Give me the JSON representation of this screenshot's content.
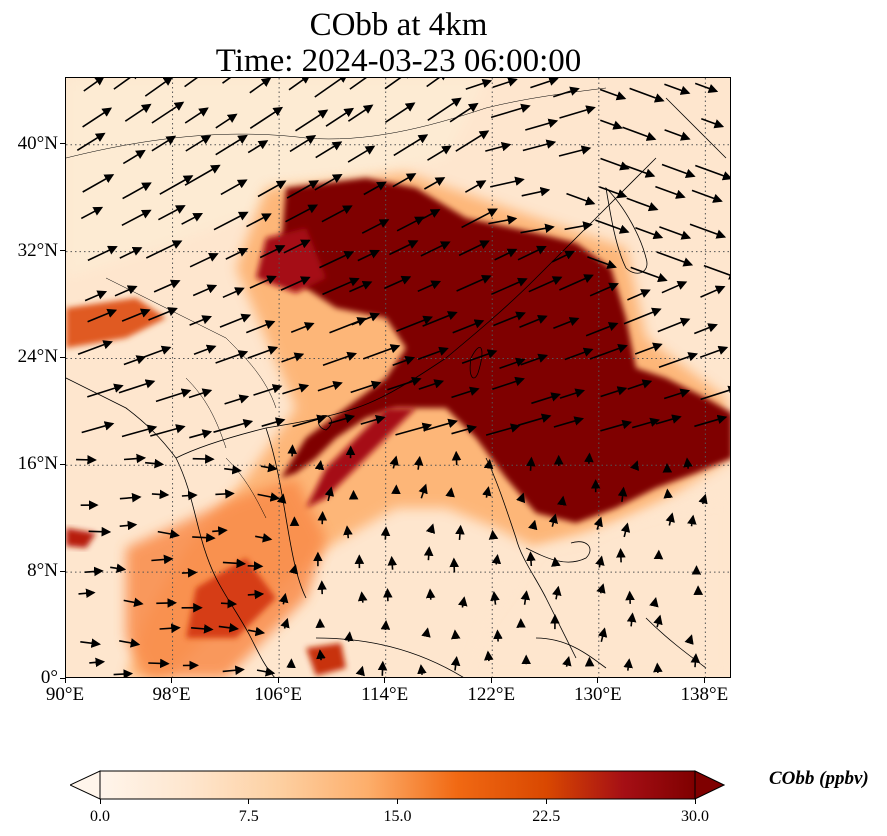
{
  "title": {
    "line1": "CObb at 4km",
    "line2": "Time: 2024-03-23 06:00:00"
  },
  "map": {
    "type": "filled-contour map with wind vectors",
    "extent": {
      "lon": [
        90,
        140
      ],
      "lat": [
        0,
        45
      ]
    },
    "gridlines": "dotted",
    "lon_ticks": [
      {
        "value": 90,
        "label": "90°E"
      },
      {
        "value": 98,
        "label": "98°E"
      },
      {
        "value": 106,
        "label": "106°E"
      },
      {
        "value": 114,
        "label": "114°E"
      },
      {
        "value": 122,
        "label": "122°E"
      },
      {
        "value": 130,
        "label": "130°E"
      },
      {
        "value": 138,
        "label": "138°E"
      }
    ],
    "lat_ticks": [
      {
        "value": 0,
        "label": "0°"
      },
      {
        "value": 8,
        "label": "8°N"
      },
      {
        "value": 16,
        "label": "16°N"
      },
      {
        "value": 24,
        "label": "24°N"
      },
      {
        "value": 32,
        "label": "32°N"
      },
      {
        "value": 40,
        "label": "40°N"
      }
    ],
    "colors": {
      "low": "#fff5eb",
      "mid": "#fdae6b",
      "high": "#e6550d",
      "max": "#7f0000"
    }
  },
  "colorbar": {
    "label": "CObb (ppbv)",
    "min": 0.0,
    "max": 30.0,
    "extend": "both",
    "ticks": [
      "0.0",
      "7.5",
      "15.0",
      "22.5",
      "30.0"
    ]
  }
}
